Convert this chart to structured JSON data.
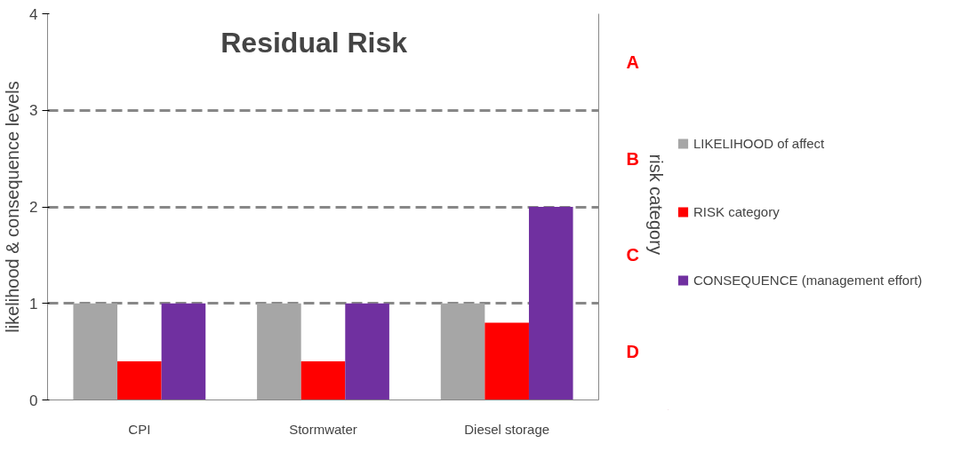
{
  "chart_data": {
    "type": "bar",
    "title": "Residual Risk",
    "categories": [
      "CPI",
      "Stormwater",
      "Diesel storage"
    ],
    "series": [
      {
        "name": "LIKELIHOOD of affect",
        "color": "#a6a6a6",
        "values": [
          1,
          1,
          1
        ]
      },
      {
        "name": "RISK category",
        "color": "#ff0000",
        "values": [
          0.4,
          0.4,
          0.8
        ]
      },
      {
        "name": "CONSEQUENCE (management effort)",
        "color": "#7030a0",
        "values": [
          1,
          1,
          2
        ]
      }
    ],
    "ylabel": "likelihood & consequence levels",
    "y2label": "risk  category",
    "ylim": [
      0,
      4
    ],
    "yticks": [
      0,
      1,
      2,
      3,
      4
    ],
    "y2_categories": [
      "A",
      "B",
      "C",
      "D"
    ],
    "grid": "y",
    "legend": "right"
  }
}
